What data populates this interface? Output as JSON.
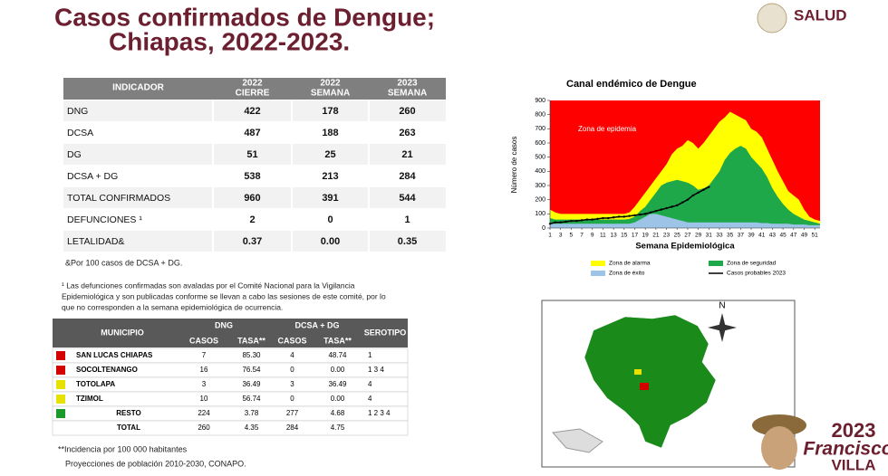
{
  "header": {
    "title_lines": [
      "Casos confirmados de Dengue;",
      "Chiapas, 2022-2023."
    ],
    "logo": "SALUD"
  },
  "indicators": {
    "headers": [
      "INDICADOR",
      [
        "2022",
        "CIERRE"
      ],
      [
        "2022",
        "SEMANA"
      ],
      [
        "2023",
        "SEMANA"
      ]
    ],
    "rows": [
      [
        "DNG",
        "422",
        "178",
        "260"
      ],
      [
        "DCSA",
        "487",
        "188",
        "263"
      ],
      [
        "DG",
        "51",
        "25",
        "21"
      ],
      [
        "DCSA + DG",
        "538",
        "213",
        "284"
      ],
      [
        "TOTAL CONFIRMADOS",
        "960",
        "391",
        "544"
      ],
      [
        "DEFUNCIONES ¹",
        "2",
        "0",
        "1"
      ],
      [
        "LETALIDAD&",
        "0.37",
        "0.00",
        "0.35"
      ]
    ],
    "note": "&Por 100 casos de DCSA + DG.",
    "footnote": [
      "¹ Las defunciones confirmadas son avaladas por el Comité Nacional para la Vigilancia",
      "Epidemiológica y son publicadas conforme se llevan a cabo las sesiones de este comité, por lo",
      "que no corresponden a la semana epidemiológica de ocurrencia."
    ]
  },
  "municipios": {
    "headers": {
      "municipio": "MUNICIPIO",
      "dng": "DNG",
      "dcsa": "DCSA + DG",
      "serotipo": "SEROTIPO",
      "sub": [
        "CASOS",
        "TASA**",
        "CASOS",
        "TASA**"
      ]
    },
    "rows": [
      {
        "color": "#d40000",
        "cells": [
          "SAN LUCAS CHIAPAS",
          "7",
          "85.30",
          "4",
          "48.74",
          "1"
        ]
      },
      {
        "color": "#d40000",
        "cells": [
          "SOCOLTENANGO",
          "16",
          "76.54",
          "0",
          "0.00",
          "1   3   4"
        ]
      },
      {
        "color": "#e8e000",
        "cells": [
          "TOTOLAPA",
          "3",
          "36.49",
          "3",
          "36.49",
          "4"
        ]
      },
      {
        "color": "#e8e000",
        "cells": [
          "TZIMOL",
          "10",
          "56.74",
          "0",
          "0.00",
          "4"
        ]
      },
      {
        "color": "#1a9a2a",
        "cells": [
          "RESTO",
          "224",
          "3.78",
          "277",
          "4.68",
          "1   2   3   4"
        ]
      },
      {
        "cells": [
          "TOTAL",
          "260",
          "4.35",
          "284",
          "4.75"
        ]
      }
    ],
    "notes": [
      "**Incidencia por 100 000 habitantes",
      "Proyecciones de población 2010-2030,  CONAPO."
    ]
  },
  "map": {
    "north": "N"
  },
  "branding": {
    "year": "2023",
    "name": "Francisco",
    "surname": "VILLA"
  },
  "chart_data": {
    "type": "area",
    "title": "Canal endémico de Dengue",
    "ylabel": "Número de casos",
    "xlabel": "Semana Epidemiológica",
    "annotation": "Zona de epidemia",
    "epidemic_color": "#ff0000",
    "x": [
      1,
      2,
      3,
      4,
      5,
      6,
      7,
      8,
      9,
      10,
      11,
      12,
      13,
      14,
      15,
      16,
      17,
      18,
      19,
      20,
      21,
      22,
      23,
      24,
      25,
      26,
      27,
      28,
      29,
      30,
      31,
      32,
      33,
      34,
      35,
      36,
      37,
      38,
      39,
      40,
      41,
      42,
      43,
      44,
      45,
      46,
      47,
      48,
      49,
      50,
      51,
      52
    ],
    "xlim": [
      1,
      52
    ],
    "xticks": [
      1,
      3,
      5,
      7,
      9,
      11,
      13,
      15,
      17,
      19,
      21,
      23,
      25,
      27,
      29,
      31,
      33,
      35,
      37,
      39,
      41,
      43,
      45,
      47,
      49,
      51
    ],
    "ylim": [
      0,
      900
    ],
    "yticks": [
      0,
      100,
      200,
      300,
      400,
      500,
      600,
      700,
      800,
      900
    ],
    "series": [
      {
        "name": "Zona de alarma",
        "color": "#ffff00",
        "values": [
          130,
          110,
          100,
          100,
          100,
          100,
          100,
          100,
          100,
          100,
          100,
          100,
          100,
          100,
          100,
          110,
          150,
          200,
          250,
          300,
          350,
          400,
          450,
          520,
          560,
          580,
          620,
          600,
          560,
          600,
          650,
          700,
          750,
          780,
          820,
          800,
          780,
          760,
          700,
          680,
          640,
          560,
          480,
          400,
          330,
          260,
          230,
          200,
          130,
          80,
          60,
          50
        ]
      },
      {
        "name": "Zona de seguridad",
        "color": "#1ea84a",
        "values": [
          70,
          60,
          60,
          60,
          60,
          60,
          60,
          60,
          60,
          60,
          60,
          60,
          60,
          60,
          60,
          65,
          80,
          120,
          150,
          200,
          250,
          300,
          320,
          330,
          340,
          330,
          320,
          300,
          270,
          280,
          300,
          350,
          400,
          480,
          530,
          560,
          580,
          560,
          500,
          460,
          420,
          360,
          280,
          220,
          170,
          130,
          100,
          80,
          60,
          50,
          40,
          30
        ]
      },
      {
        "name": "Zona de éxito",
        "color": "#9dc3e6",
        "values": [
          30,
          30,
          30,
          30,
          30,
          30,
          30,
          30,
          30,
          30,
          30,
          30,
          30,
          30,
          30,
          30,
          40,
          60,
          80,
          100,
          100,
          90,
          80,
          70,
          60,
          50,
          40,
          40,
          40,
          40,
          40,
          40,
          40,
          40,
          40,
          40,
          40,
          40,
          40,
          40,
          35,
          35,
          30,
          30,
          30,
          30,
          25,
          25,
          25,
          20,
          20,
          20
        ]
      },
      {
        "name": "Casos probables 2023",
        "color": "#000000",
        "line": true,
        "values": [
          30,
          40,
          40,
          45,
          50,
          50,
          55,
          60,
          60,
          65,
          70,
          70,
          75,
          80,
          80,
          85,
          90,
          95,
          100,
          110,
          120,
          130,
          140,
          150,
          160,
          180,
          200,
          230,
          250,
          270,
          290,
          null,
          null,
          null,
          null,
          null,
          null,
          null,
          null,
          null,
          null,
          null,
          null,
          null,
          null,
          null,
          null,
          null,
          null,
          null,
          null,
          null
        ]
      }
    ]
  }
}
